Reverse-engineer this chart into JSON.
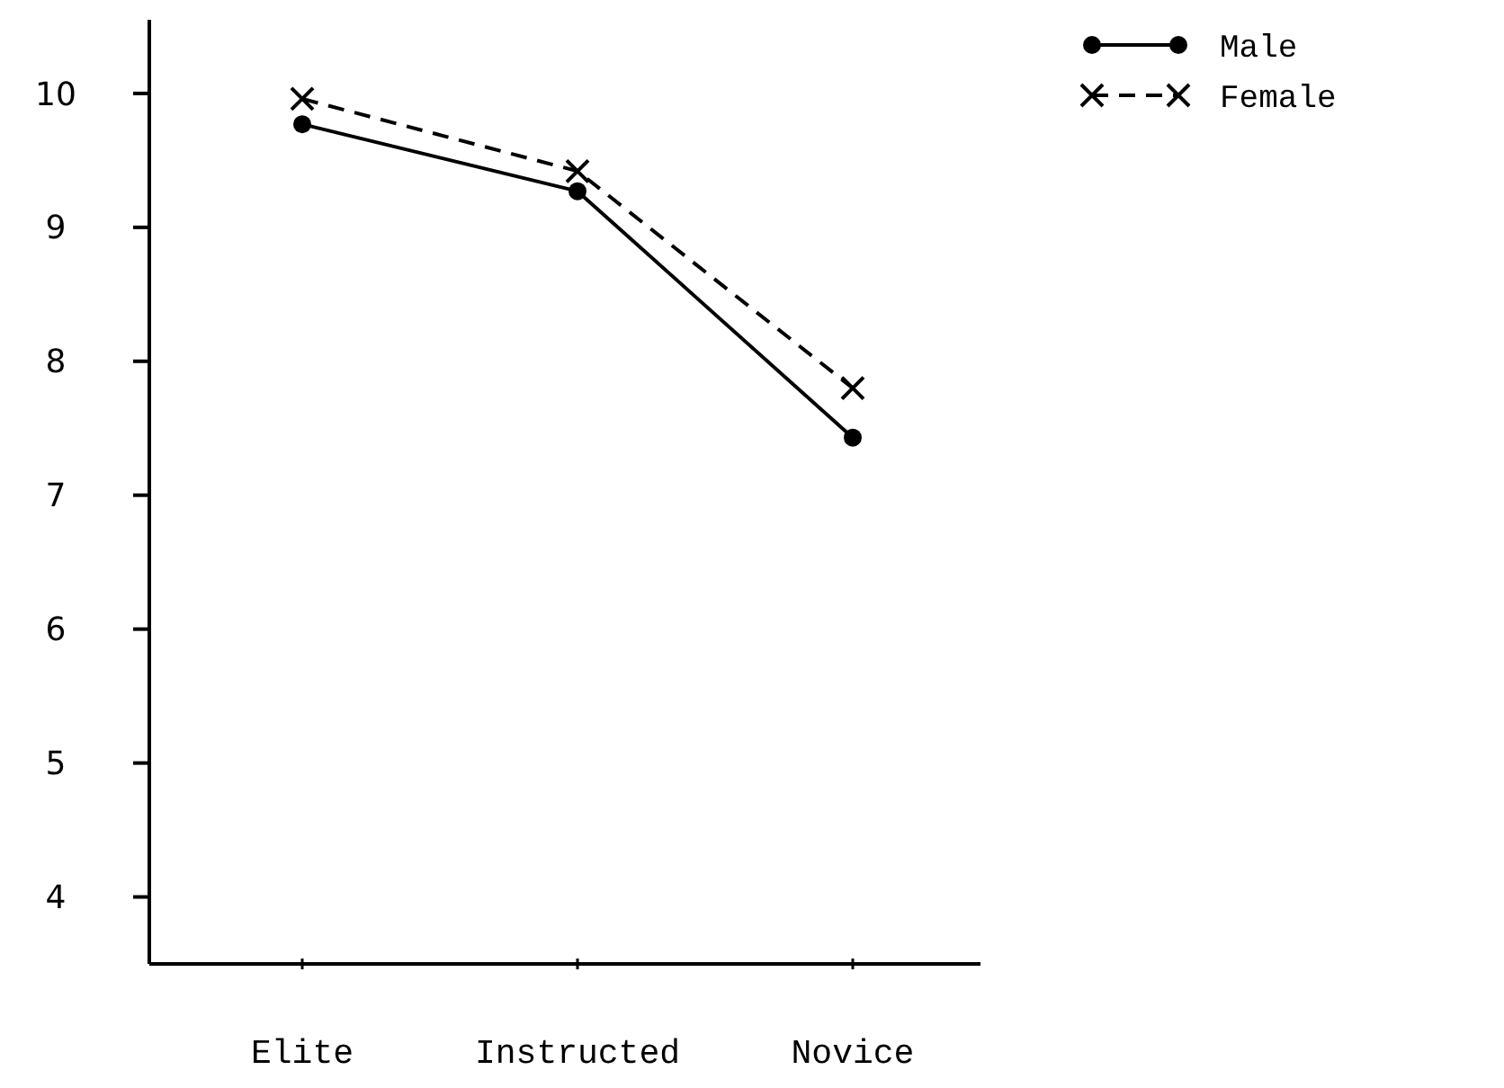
{
  "chart_data": {
    "type": "line",
    "categories": [
      "Elite",
      "Instructed",
      "Novice"
    ],
    "series": [
      {
        "name": "Male",
        "color": "#000000",
        "values": [
          9.77,
          9.27,
          7.43
        ],
        "marker": "circle",
        "line_style": "solid"
      },
      {
        "name": "Female",
        "color": "#000000",
        "values": [
          9.96,
          9.42,
          7.8
        ],
        "marker": "cross",
        "line_style": "dashed"
      }
    ],
    "ylim": [
      3.5,
      10.55
    ],
    "yticks": [
      4,
      5,
      6,
      7,
      8,
      9,
      10
    ],
    "grid": false,
    "legend": "top right"
  }
}
